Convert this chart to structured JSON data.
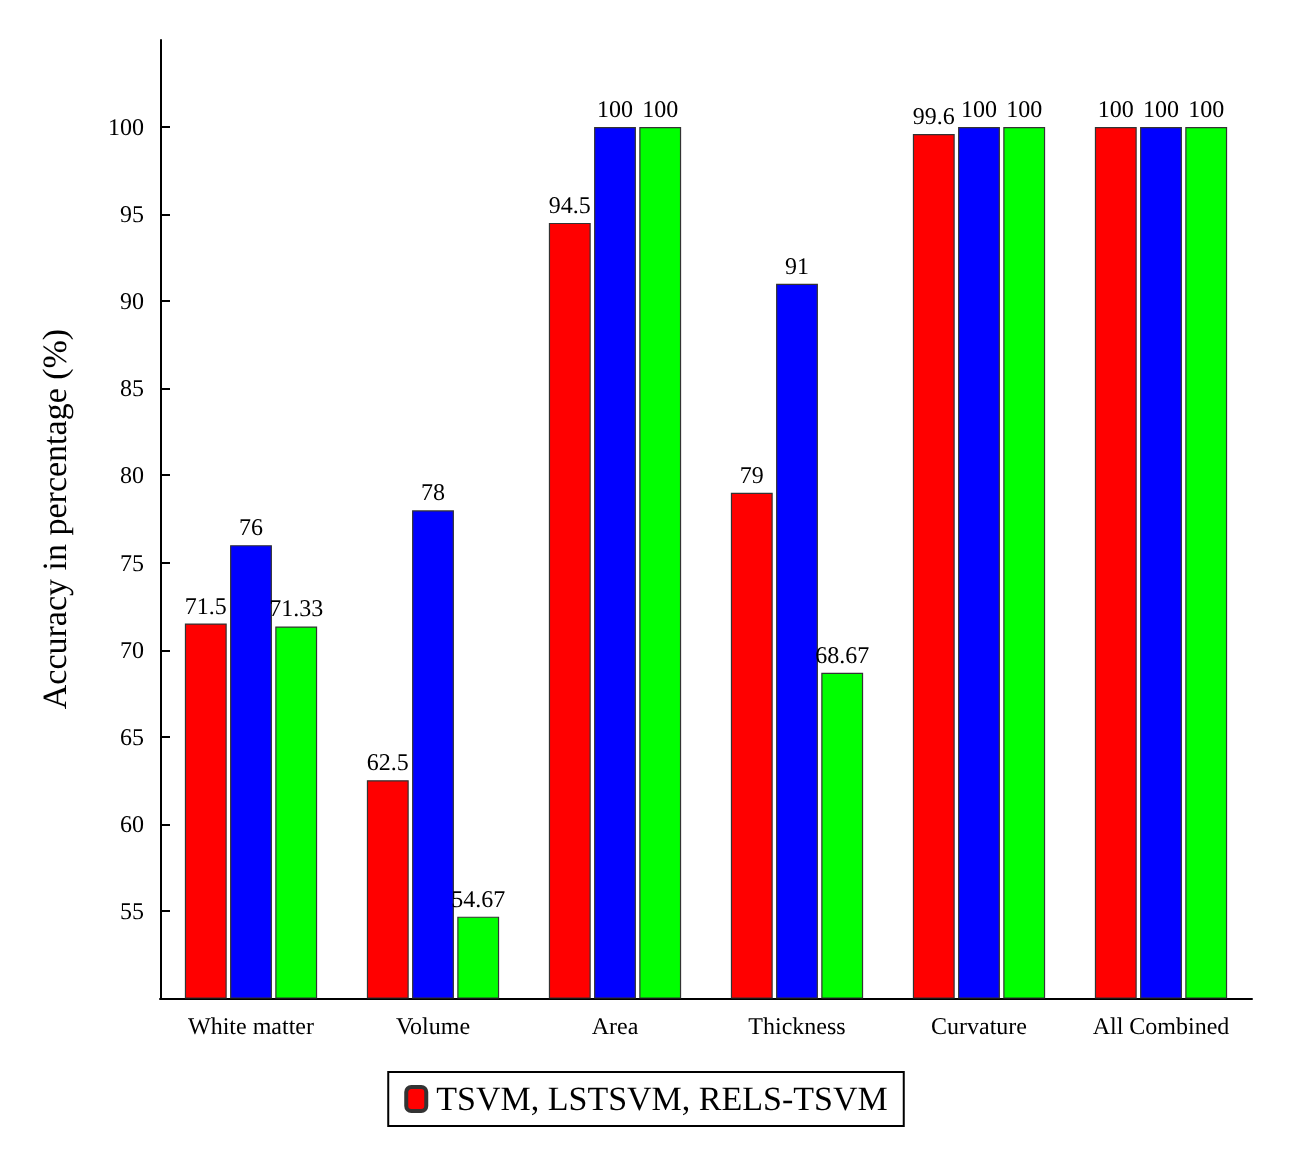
{
  "chart_data": {
    "type": "bar",
    "ylabel": "Accuracy in percentage (%)",
    "categories": [
      "White matter",
      "Volume",
      "Area",
      "Thickness",
      "Curvature",
      "All Combined"
    ],
    "series": [
      {
        "name": "TSVM, LSTSVM, RELS-TSVM",
        "color": "#ff0000",
        "values": [
          71.5,
          62.5,
          94.5,
          79,
          99.6,
          100
        ]
      },
      {
        "color": "#0000ff",
        "values": [
          76,
          78,
          100,
          91,
          100,
          100
        ]
      },
      {
        "color": "#00ff00",
        "values": [
          71.33,
          54.67,
          100,
          68.67,
          100,
          100
        ]
      }
    ],
    "ylim": [
      50,
      105
    ],
    "yticks": [
      55,
      60,
      65,
      70,
      75,
      80,
      85,
      90,
      95,
      100
    ],
    "data_labels": true,
    "grid": false,
    "legend": "bottom"
  }
}
